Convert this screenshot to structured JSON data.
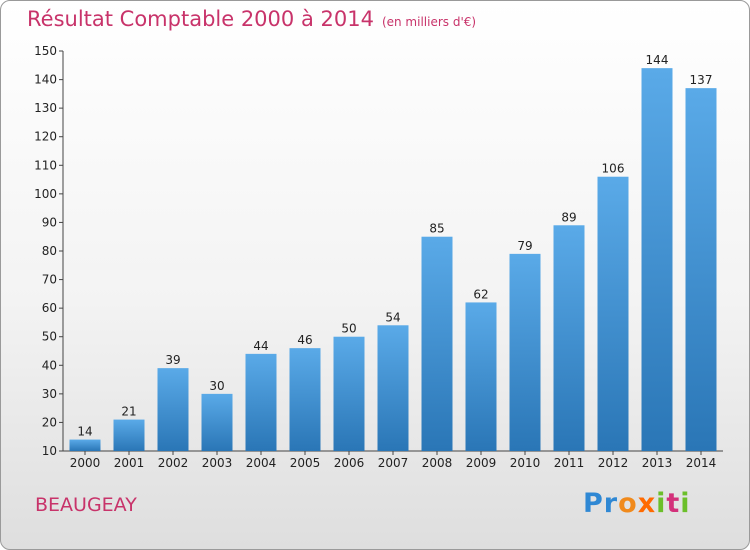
{
  "title": "Résultat Comptable 2000 à 2014",
  "subtitle": "(en milliers d'€)",
  "commune": "BEAUGEAY",
  "logo": {
    "letters": [
      "P",
      "r",
      "o",
      "x",
      "i",
      "t",
      "i"
    ],
    "colors": [
      "#2f88d4",
      "#2f88d4",
      "#f08a1c",
      "#ff6a00",
      "#6bbf2a",
      "#d3317a",
      "#6bbf2a"
    ]
  },
  "colors": {
    "bar_top": "#5aaae8",
    "bar_bottom": "#2a76b6",
    "title": "#c8336a"
  },
  "chart_data": {
    "type": "bar",
    "categories": [
      "2000",
      "2001",
      "2002",
      "2003",
      "2004",
      "2005",
      "2006",
      "2007",
      "2008",
      "2009",
      "2010",
      "2011",
      "2012",
      "2013",
      "2014"
    ],
    "values": [
      14,
      21,
      39,
      30,
      44,
      46,
      50,
      54,
      85,
      62,
      79,
      89,
      106,
      144,
      137
    ],
    "ylim": [
      10,
      150
    ],
    "yticks": [
      10,
      20,
      30,
      40,
      50,
      60,
      70,
      80,
      90,
      100,
      110,
      120,
      130,
      140,
      150
    ],
    "xlabel": "",
    "ylabel": "",
    "grid": false
  }
}
